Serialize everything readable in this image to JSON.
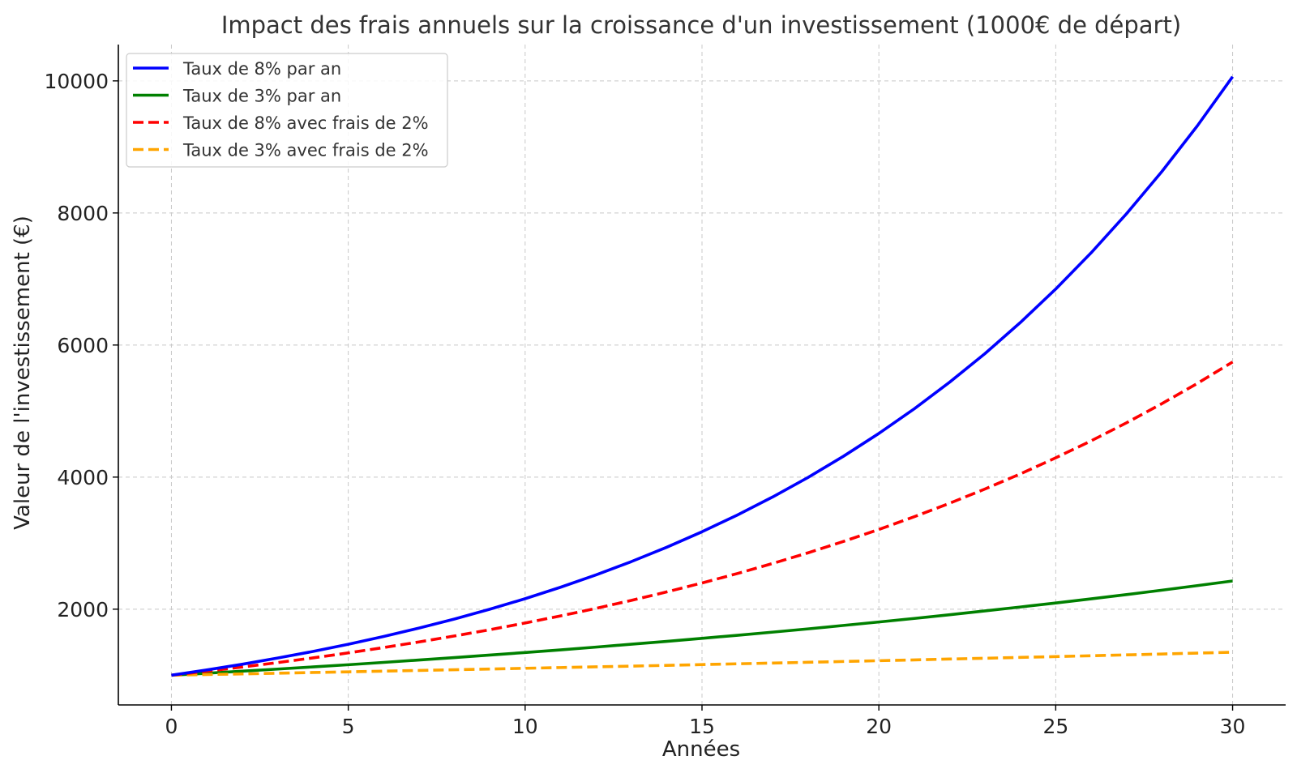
{
  "chart_data": {
    "type": "line",
    "title": "Impact des frais annuels sur la croissance d'un investissement (1000€ de départ)",
    "xlabel": "Années",
    "ylabel": "Valeur de l'investissement (€)",
    "xlim": [
      -1.5,
      31.5
    ],
    "ylim": [
      550,
      10550
    ],
    "xticks": [
      0,
      5,
      10,
      15,
      20,
      25,
      30
    ],
    "yticks": [
      2000,
      4000,
      6000,
      8000,
      10000
    ],
    "grid": true,
    "legend_position": "top-left",
    "x": [
      0,
      1,
      2,
      3,
      4,
      5,
      6,
      7,
      8,
      9,
      10,
      11,
      12,
      13,
      14,
      15,
      16,
      17,
      18,
      19,
      20,
      21,
      22,
      23,
      24,
      25,
      26,
      27,
      28,
      29,
      30
    ],
    "series": [
      {
        "name": "Taux de 8% par an",
        "color": "#0000ff",
        "style": "solid",
        "values": [
          1000,
          1080,
          1166,
          1260,
          1360,
          1469,
          1587,
          1714,
          1851,
          1999,
          2159,
          2332,
          2518,
          2720,
          2937,
          3172,
          3426,
          3700,
          3996,
          4316,
          4661,
          5034,
          5437,
          5871,
          6341,
          6848,
          7396,
          7988,
          8627,
          9317,
          10063
        ]
      },
      {
        "name": "Taux de 3% par an",
        "color": "#008000",
        "style": "solid",
        "values": [
          1000,
          1030,
          1061,
          1093,
          1126,
          1159,
          1194,
          1230,
          1267,
          1305,
          1344,
          1384,
          1426,
          1469,
          1513,
          1558,
          1605,
          1653,
          1702,
          1754,
          1806,
          1860,
          1916,
          1974,
          2033,
          2094,
          2157,
          2221,
          2288,
          2357,
          2427
        ]
      },
      {
        "name": "Taux de 8% avec frais de 2%",
        "color": "#ff0000",
        "style": "dashed",
        "values": [
          1000,
          1060,
          1124,
          1191,
          1262,
          1338,
          1419,
          1504,
          1594,
          1689,
          1791,
          1898,
          2012,
          2133,
          2261,
          2397,
          2540,
          2693,
          2854,
          3026,
          3207,
          3400,
          3604,
          3820,
          4049,
          4292,
          4549,
          4822,
          5112,
          5418,
          5743
        ]
      },
      {
        "name": "Taux de 3% avec frais de 2%",
        "color": "#ffa500",
        "style": "dashed",
        "values": [
          1000,
          1010,
          1020,
          1030,
          1041,
          1051,
          1062,
          1072,
          1083,
          1094,
          1105,
          1116,
          1127,
          1138,
          1149,
          1161,
          1173,
          1184,
          1196,
          1208,
          1220,
          1232,
          1245,
          1257,
          1270,
          1282,
          1295,
          1308,
          1321,
          1335,
          1348
        ]
      }
    ]
  }
}
